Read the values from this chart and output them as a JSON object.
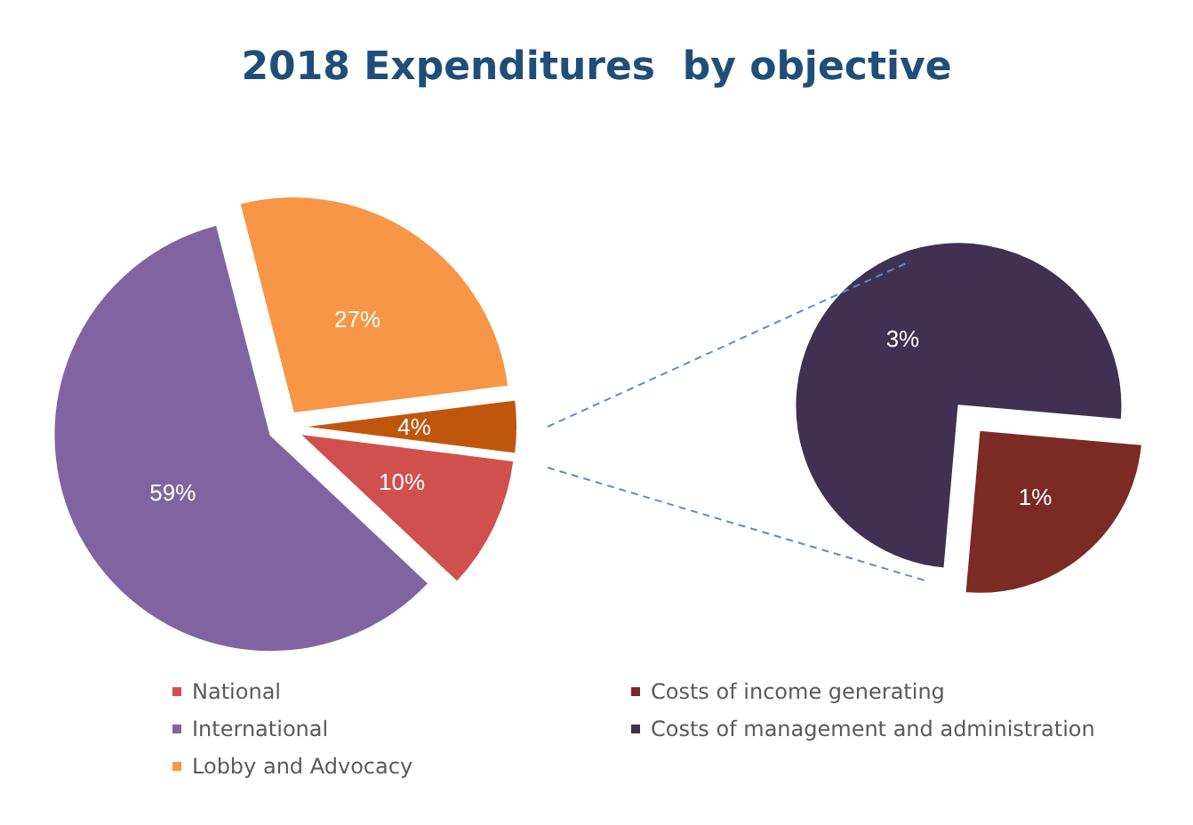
{
  "chart_data": [
    {
      "type": "pie",
      "title": "2018 Expenditures  by objective",
      "categories": [
        "National",
        "International",
        "Lobby and Advocacy",
        null
      ],
      "values": [
        10,
        59,
        27,
        4
      ],
      "value_labels": [
        "10%",
        "59%",
        "27%",
        "4%"
      ],
      "colors": [
        "#d0504e",
        "#8064a2",
        "#f79646",
        "#c0560c"
      ],
      "legend": "bottom left"
    },
    {
      "type": "pie",
      "categories": [
        "Costs of income generating",
        "Costs of management and administration"
      ],
      "values": [
        1,
        3
      ],
      "value_labels": [
        "1%",
        "3%"
      ],
      "colors": [
        "#7b2a24",
        "#3f3151"
      ],
      "legend": "bottom"
    }
  ]
}
